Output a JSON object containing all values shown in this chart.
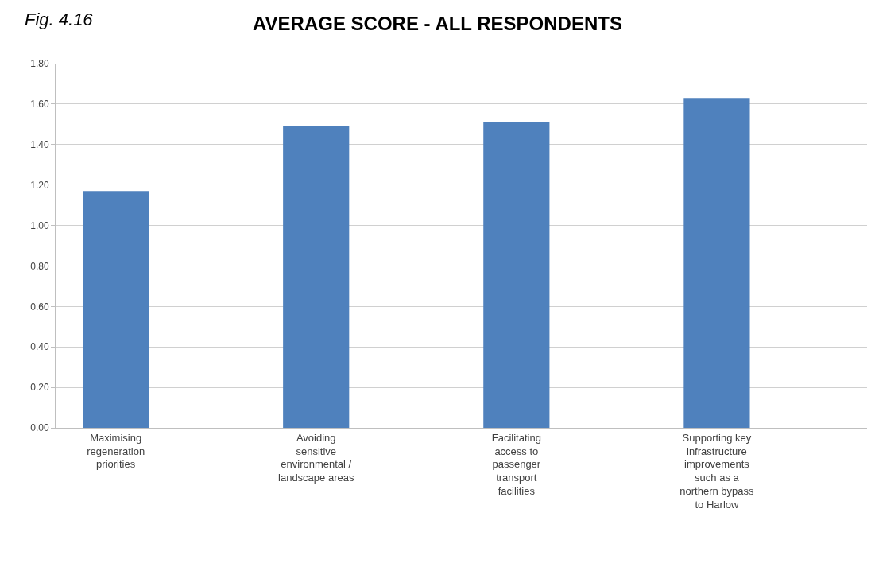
{
  "chart_data": {
    "type": "bar",
    "title": "AVERAGE SCORE - ALL RESPONDENTS",
    "annotations": [
      "Fig. 4.16"
    ],
    "categories": [
      "Maximising regeneration priorities",
      "Avoiding sensitive environmental / landscape areas",
      "Facilitating access to passenger transport facilities",
      "Supporting key infrastructure improvements such as a northern bypass to Harlow"
    ],
    "values": [
      1.17,
      1.49,
      1.51,
      1.63
    ],
    "color": "#4f81bd",
    "ylim": [
      0,
      1.8
    ],
    "yticks": [
      {
        "value": 0,
        "label": "0.00"
      },
      {
        "value": 0.2,
        "label": "0.20"
      },
      {
        "value": 0.4,
        "label": "0.40"
      },
      {
        "value": 0.6,
        "label": "0.60"
      },
      {
        "value": 0.8,
        "label": "0.80"
      },
      {
        "value": 1.0,
        "label": "1.00"
      },
      {
        "value": 1.2,
        "label": "1.20"
      },
      {
        "value": 1.4,
        "label": "1.40"
      },
      {
        "value": 1.6,
        "label": "1.60"
      },
      {
        "value": 1.8,
        "label": "1.80"
      }
    ],
    "grid": "y"
  }
}
